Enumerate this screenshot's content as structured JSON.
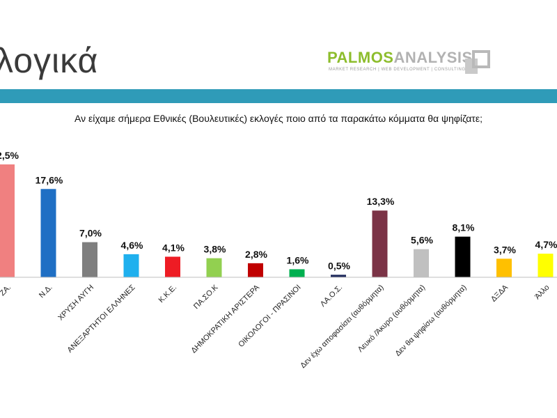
{
  "page": {
    "title": "λογικά",
    "logo": {
      "brand_green": "PALMOS",
      "brand_gray": "ANALYSIS",
      "tagline": "MARKET RESEARCH | WEB DEVELOPMENT | CONSULTING"
    },
    "band_color": "#2f9bb8"
  },
  "chart_data": {
    "type": "bar",
    "title": "Αν είχαμε σήμερα Εθνικές (Βουλευτικές) εκλογές ποιο από τα παρακάτω κόμματα θα ψηφίζατε;",
    "categories": [
      "ΣΥ.ΡΙΖΑ.",
      "Ν.Δ.",
      "ΧΡΥΣΗ ΑΥΓΗ",
      "ΑΝΕΞΑΡΤΗΤΟΙ ΕΛΛΗΝΕΣ",
      "Κ.Κ.Ε.",
      "ΠΑ.ΣΟ.Κ",
      "ΔΗΜΟΚΡΑΤΙΚΗ ΑΡΙΣΤΕΡΑ",
      "ΟΙΚΟΛΟΓΟΙ - ΠΡΑΣΙΝΟΙ",
      "ΛΑ.Ο.Σ.",
      "Δεν έχω αποφασίσει (αυθόρμητα)",
      "Λευκό /Άκυρο (αυθόρμητα)",
      "Δεν θα ψηφίσω (αυθόρμητα)",
      "ΔΞΔΑ",
      "Άλλο"
    ],
    "visible_categories": [
      "ΖΑ.",
      "Ν.Δ.",
      "ΧΡΥΣΗ ΑΥΓΗ",
      "ΑΝΕΞΑΡΤΗΤΟΙ ΕΛΛΗΝΕΣ",
      "Κ.Κ.Ε.",
      "ΠΑ.ΣΟ.Κ",
      "ΔΗΜΟΚΡΑΤΙΚΗ ΑΡΙΣΤΕΡΑ",
      "ΟΙΚΟΛΟΓΟΙ - ΠΡΑΣΙΝΟΙ",
      "ΛΑ.Ο.Σ.",
      "Δεν έχω αποφασίσει (αυθόρμητα)",
      "Λευκό /Άκυρο (αυθόρμητα)",
      "Δεν θα ψηφίσω (αυθόρμητα)",
      "ΔΞΔΑ",
      "Άλλο"
    ],
    "values": [
      22.5,
      17.6,
      7.0,
      4.6,
      4.1,
      3.8,
      2.8,
      1.6,
      0.5,
      13.3,
      5.6,
      8.1,
      3.7,
      4.7
    ],
    "labels": [
      "2,5%",
      "17,6%",
      "7,0%",
      "4,6%",
      "4,1%",
      "3,8%",
      "2,8%",
      "1,6%",
      "0,5%",
      "13,3%",
      "5,6%",
      "8,1%",
      "3,7%",
      "4,7%"
    ],
    "colors": [
      "#f08080",
      "#1f6fc4",
      "#7f7f7f",
      "#1fb0ee",
      "#ee1c24",
      "#92d050",
      "#c00000",
      "#00b050",
      "#1f2a5c",
      "#7b3346",
      "#c0c0c0",
      "#000000",
      "#ffc000",
      "#ffff00"
    ],
    "ylim": [
      0,
      24
    ],
    "grid": false,
    "legend": "none"
  }
}
